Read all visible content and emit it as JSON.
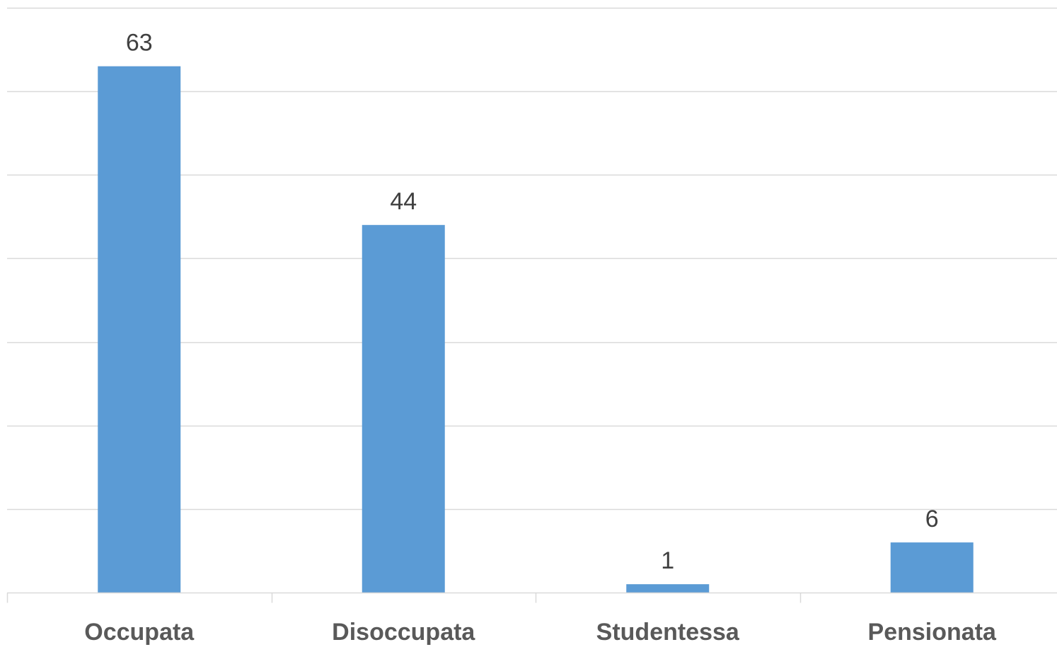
{
  "chart_data": {
    "type": "bar",
    "categories": [
      "Occupata",
      "Disoccupata",
      "Studentessa",
      "Pensionata"
    ],
    "values": [
      63,
      44,
      1,
      6
    ],
    "title": "",
    "xlabel": "",
    "ylabel": "",
    "ylim": [
      0,
      70
    ],
    "grid": true,
    "gridline_step": 10,
    "legend": "none",
    "show_data_labels": true,
    "bar_color": "#5b9bd5",
    "gridline_color": "#d9d9d9",
    "label_color": "#404040",
    "category_label_color": "#595959"
  }
}
